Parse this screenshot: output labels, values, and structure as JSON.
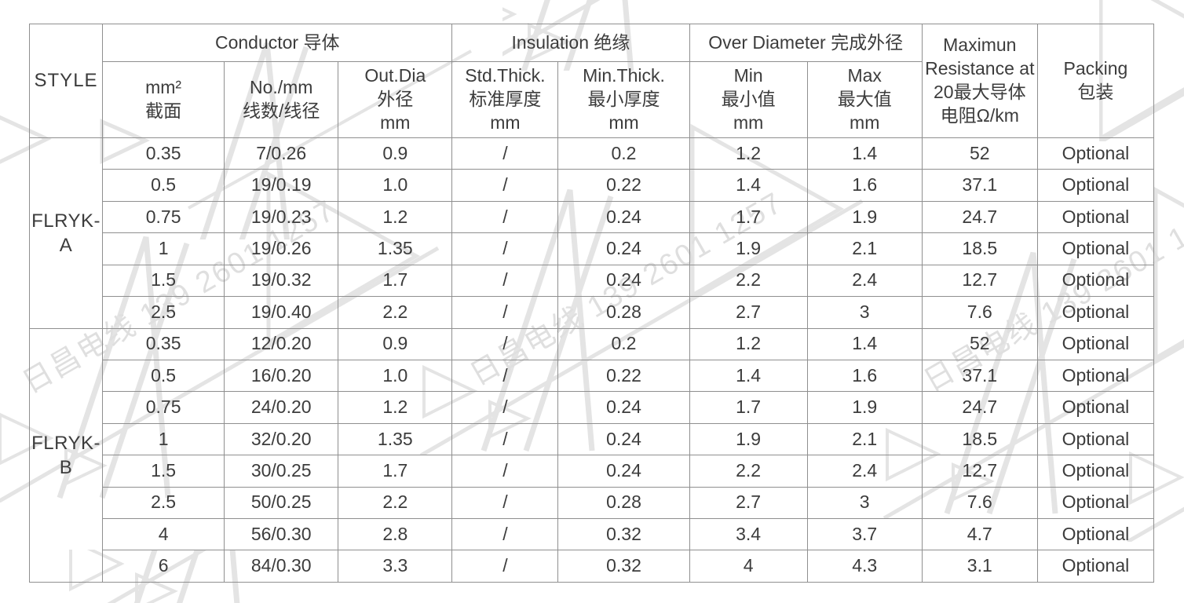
{
  "page": {
    "background": "#ffffff",
    "border_color": "#8f8f8f",
    "text_color": "#3c3c3c",
    "watermark_color": "#e4e4e4"
  },
  "watermark": {
    "text": "日昌电线 139 2601 1257"
  },
  "table": {
    "style_header": "STYLE",
    "col_groups": [
      {
        "label": "Conductor 导体"
      },
      {
        "label": "Insulation 绝缘"
      },
      {
        "label": "Over Diameter 完成外径"
      }
    ],
    "sub_headers": [
      "mm²\n截面",
      "No./mm\n线数/线径",
      "Out.Dia\n外径\nmm",
      "Std.Thick.\n标准厚度\nmm",
      "Min.Thick.\n最小厚度\nmm",
      "Min\n最小值\nmm",
      "Max\n最大值\nmm"
    ],
    "resistance_header": "Maximun\nResistance at\n20最大导体\n电阻Ω/km",
    "packing_header": "Packing\n包装",
    "groups": [
      {
        "style": "FLRYK-A",
        "rows": [
          [
            "0.35",
            "7/0.26",
            "0.9",
            "/",
            "0.2",
            "1.2",
            "1.4",
            "52",
            "Optional"
          ],
          [
            "0.5",
            "19/0.19",
            "1.0",
            "/",
            "0.22",
            "1.4",
            "1.6",
            "37.1",
            "Optional"
          ],
          [
            "0.75",
            "19/0.23",
            "1.2",
            "/",
            "0.24",
            "1.7",
            "1.9",
            "24.7",
            "Optional"
          ],
          [
            "1",
            "19/0.26",
            "1.35",
            "/",
            "0.24",
            "1.9",
            "2.1",
            "18.5",
            "Optional"
          ],
          [
            "1.5",
            "19/0.32",
            "1.7",
            "/",
            "0.24",
            "2.2",
            "2.4",
            "12.7",
            "Optional"
          ],
          [
            "2.5",
            "19/0.40",
            "2.2",
            "/",
            "0.28",
            "2.7",
            "3",
            "7.6",
            "Optional"
          ]
        ]
      },
      {
        "style": "FLRYK-B",
        "rows": [
          [
            "0.35",
            "12/0.20",
            "0.9",
            "/",
            "0.2",
            "1.2",
            "1.4",
            "52",
            "Optional"
          ],
          [
            "0.5",
            "16/0.20",
            "1.0",
            "/",
            "0.22",
            "1.4",
            "1.6",
            "37.1",
            "Optional"
          ],
          [
            "0.75",
            "24/0.20",
            "1.2",
            "/",
            "0.24",
            "1.7",
            "1.9",
            "24.7",
            "Optional"
          ],
          [
            "1",
            "32/0.20",
            "1.35",
            "/",
            "0.24",
            "1.9",
            "2.1",
            "18.5",
            "Optional"
          ],
          [
            "1.5",
            "30/0.25",
            "1.7",
            "/",
            "0.24",
            "2.2",
            "2.4",
            "12.7",
            "Optional"
          ],
          [
            "2.5",
            "50/0.25",
            "2.2",
            "/",
            "0.28",
            "2.7",
            "3",
            "7.6",
            "Optional"
          ],
          [
            "4",
            "56/0.30",
            "2.8",
            "/",
            "0.32",
            "3.4",
            "3.7",
            "4.7",
            "Optional"
          ],
          [
            "6",
            "84/0.30",
            "3.3",
            "/",
            "0.32",
            "4",
            "4.3",
            "3.1",
            "Optional"
          ]
        ]
      }
    ]
  }
}
